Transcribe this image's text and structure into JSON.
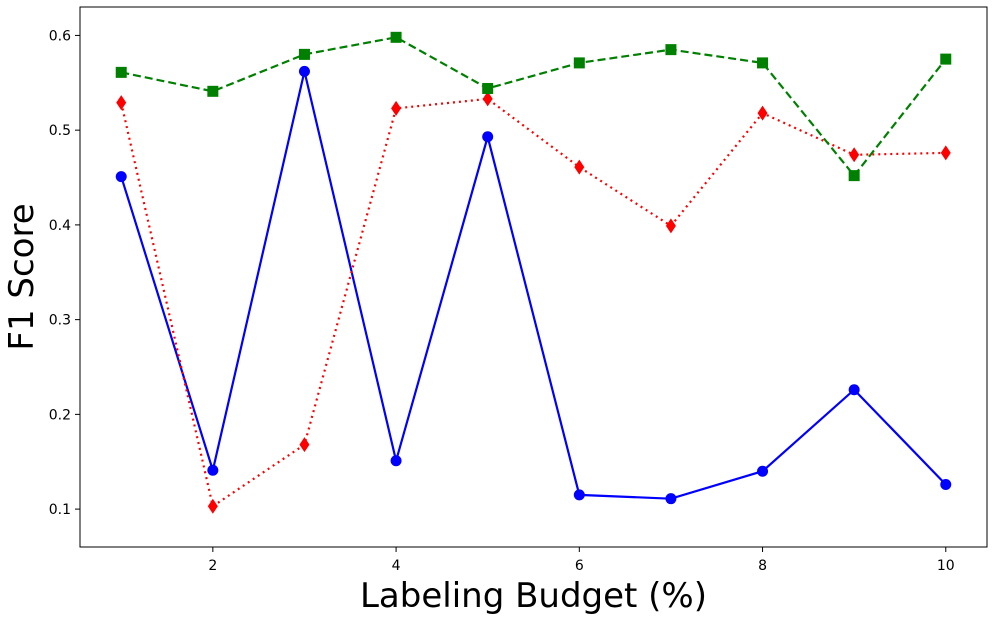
{
  "chart_data": {
    "type": "line",
    "xlabel": "Labeling Budget (%)",
    "ylabel": "F1 Score",
    "xlim": [
      0.55,
      10.45
    ],
    "ylim": [
      0.06,
      0.63
    ],
    "xticks": [
      2,
      4,
      6,
      8,
      10
    ],
    "yticks": [
      0.1,
      0.2,
      0.3,
      0.4,
      0.5,
      0.6
    ],
    "xtick_labels": [
      "2",
      "4",
      "6",
      "8",
      "10"
    ],
    "ytick_labels": [
      "0.1",
      "0.2",
      "0.3",
      "0.4",
      "0.5",
      "0.6"
    ],
    "grid": false,
    "legend": false,
    "x": [
      1,
      2,
      3,
      4,
      5,
      6,
      7,
      8,
      9,
      10
    ],
    "series": [
      {
        "color": "#0000ff",
        "line_style": "solid",
        "marker": "circle",
        "values": [
          0.451,
          0.141,
          0.562,
          0.151,
          0.493,
          0.115,
          0.111,
          0.14,
          0.226,
          0.126
        ]
      },
      {
        "color": "#ff0000",
        "line_style": "dotted",
        "marker": "diamond",
        "values": [
          0.529,
          0.103,
          0.168,
          0.523,
          0.533,
          0.461,
          0.399,
          0.518,
          0.474,
          0.476
        ]
      },
      {
        "color": "#008000",
        "line_style": "dashed",
        "marker": "square",
        "values": [
          0.561,
          0.541,
          0.58,
          0.598,
          0.544,
          0.571,
          0.585,
          0.571,
          0.452,
          0.575
        ]
      }
    ]
  }
}
